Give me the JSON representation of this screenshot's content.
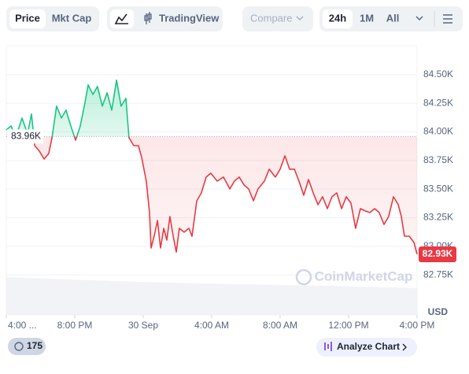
{
  "toolbar": {
    "price": "Price",
    "mkt_cap": "Mkt Cap",
    "tradingview": "TradingView",
    "compare": "Compare",
    "range_24h": "24h",
    "range_1m": "1M",
    "range_all": "All"
  },
  "chart_data": {
    "type": "line",
    "x": [
      16.0,
      16.28,
      16.55,
      16.92,
      17.24,
      17.47,
      17.66,
      17.93,
      18.21,
      18.48,
      18.67,
      18.94,
      19.22,
      19.49,
      19.77,
      20.05,
      20.32,
      20.6,
      20.78,
      21.06,
      21.33,
      21.61,
      21.89,
      22.16,
      22.44,
      22.71,
      22.99,
      23.17,
      23.45,
      23.72,
      23.91,
      24.18,
      24.37,
      24.46,
      24.64,
      24.83,
      25.01,
      25.2,
      25.38,
      25.56,
      25.75,
      25.93,
      26.11,
      26.39,
      26.67,
      26.85,
      27.13,
      27.4,
      27.68,
      27.95,
      28.32,
      28.69,
      29.06,
      29.33,
      29.61,
      29.89,
      30.16,
      30.44,
      30.71,
      31.08,
      31.36,
      31.72,
      32.0,
      32.28,
      32.55,
      32.83,
      33.1,
      33.38,
      33.66,
      33.93,
      34.21,
      34.48,
      34.76,
      35.03,
      35.31,
      35.59,
      35.86,
      36.14,
      36.41,
      36.69,
      36.97,
      37.24,
      37.52,
      37.79,
      38.07,
      38.34,
      38.62,
      38.9,
      39.08,
      39.26,
      39.54,
      39.82,
      40.0
    ],
    "values": [
      84018,
      84052,
      83949,
      84121,
      83983,
      84156,
      83880,
      83832,
      83763,
      83811,
      83949,
      84225,
      84121,
      84190,
      84052,
      83928,
      84052,
      84259,
      84410,
      84328,
      84397,
      84225,
      84342,
      84190,
      84452,
      84225,
      84293,
      83949,
      83880,
      83880,
      83777,
      83570,
      83295,
      82985,
      83088,
      83226,
      82985,
      83157,
      83054,
      83260,
      83088,
      82950,
      83157,
      83123,
      83157,
      83088,
      83398,
      83467,
      83605,
      83639,
      83570,
      83605,
      83501,
      83570,
      83605,
      83536,
      83501,
      83398,
      83501,
      83570,
      83674,
      83605,
      83674,
      83791,
      83674,
      83674,
      83570,
      83446,
      83584,
      83467,
      83364,
      83433,
      83329,
      83433,
      83467,
      83329,
      83433,
      83377,
      83157,
      83329,
      83309,
      83295,
      83329,
      83295,
      83191,
      83260,
      83433,
      83364,
      83260,
      83088,
      83088,
      83033,
      82930
    ],
    "up_color": "#16c784",
    "down_color": "#ea3943",
    "xlim": [
      16,
      40
    ],
    "ylim": [
      82400,
      84740
    ],
    "xticks": [
      {
        "value": 16,
        "label": "4:00 ..."
      },
      {
        "value": 20,
        "label": "8:00 PM"
      },
      {
        "value": 24,
        "label": "30 Sep"
      },
      {
        "value": 28,
        "label": "4:00 AM"
      },
      {
        "value": 32,
        "label": "8:00 AM"
      },
      {
        "value": 36,
        "label": "12:00 PM"
      },
      {
        "value": 40,
        "label": "4:00 PM"
      }
    ],
    "yticks": [
      {
        "value": 82750,
        "label": "82.75K"
      },
      {
        "value": 83000,
        "label": "83.00K"
      },
      {
        "value": 83250,
        "label": "83.25K"
      },
      {
        "value": 83500,
        "label": "83.50K"
      },
      {
        "value": 83750,
        "label": "83.75K"
      },
      {
        "value": 84000,
        "label": "84.00K"
      },
      {
        "value": 84250,
        "label": "84.25K"
      },
      {
        "value": 84500,
        "label": "84.50K"
      }
    ],
    "grid": true,
    "reference": {
      "value": 83960,
      "label": "83.96K"
    },
    "last_price": {
      "value": 82930,
      "label": "82.93K"
    },
    "y_axis_label": "USD",
    "watermark": "CoinMarketCap"
  },
  "footer": {
    "badge": "175",
    "analyze": "Analyze Chart"
  }
}
